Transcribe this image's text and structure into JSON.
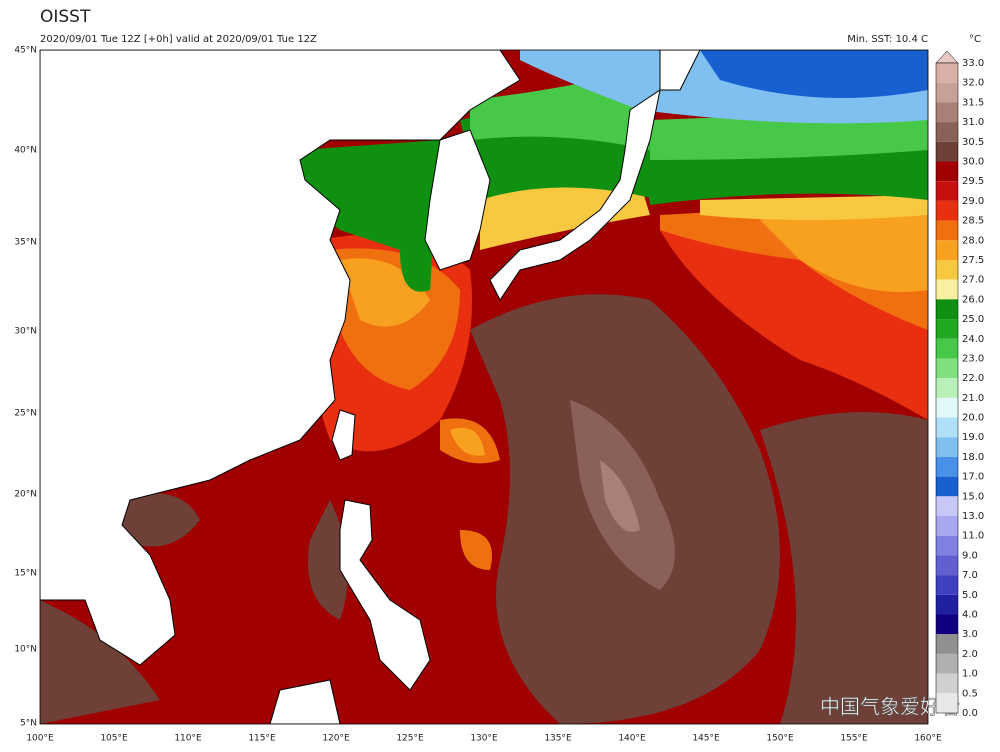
{
  "header": {
    "title": "OISST",
    "subtitle": "2020/09/01 Tue 12Z [+0h] valid at 2020/09/01 Tue 12Z",
    "min_sst": "Min. SST: 10.4 C",
    "unit": "°C"
  },
  "map": {
    "lat_labels": [
      "45°N",
      "40°N",
      "35°N",
      "30°N",
      "25°N",
      "20°N",
      "15°N",
      "10°N",
      "5°N"
    ],
    "lon_labels": [
      "100°E",
      "105°E",
      "110°E",
      "115°E",
      "120°E",
      "125°E",
      "130°E",
      "135°E",
      "140°E",
      "145°E",
      "150°E",
      "155°E",
      "160°E"
    ]
  },
  "colorbar": {
    "labels": [
      "33.0",
      "32.0",
      "31.5",
      "31.0",
      "30.5",
      "30.0",
      "29.5",
      "29.0",
      "28.5",
      "28.0",
      "27.5",
      "27.0",
      "26.0",
      "25.0",
      "24.0",
      "23.0",
      "22.0",
      "21.0",
      "20.0",
      "19.0",
      "18.0",
      "17.0",
      "15.0",
      "13.0",
      "11.0",
      "9.0",
      "7.0",
      "5.0",
      "4.0",
      "3.0",
      "2.0",
      "1.0",
      "0.5",
      "0.0"
    ],
    "top_color": "#e8c8c0",
    "colors": [
      "#d8b0a8",
      "#c8a09a",
      "#a88078",
      "#8a6058",
      "#6e4038",
      "#a00000",
      "#c81010",
      "#e83010",
      "#f07010",
      "#f8a020",
      "#f8c840",
      "#f8f0a0",
      "#109010",
      "#20a820",
      "#48c848",
      "#80e080",
      "#b8f0b8",
      "#e0f8f8",
      "#b0e0f8",
      "#80c0f0",
      "#4890e8",
      "#1860d0",
      "#c8c8f8",
      "#a8a8f0",
      "#8080e0",
      "#6060d0",
      "#4040c0",
      "#2020a0",
      "#100080",
      "#909090",
      "#b0b0b0",
      "#d0d0d0",
      "#e8e8e8"
    ]
  },
  "watermark": "中国气象爱好者"
}
